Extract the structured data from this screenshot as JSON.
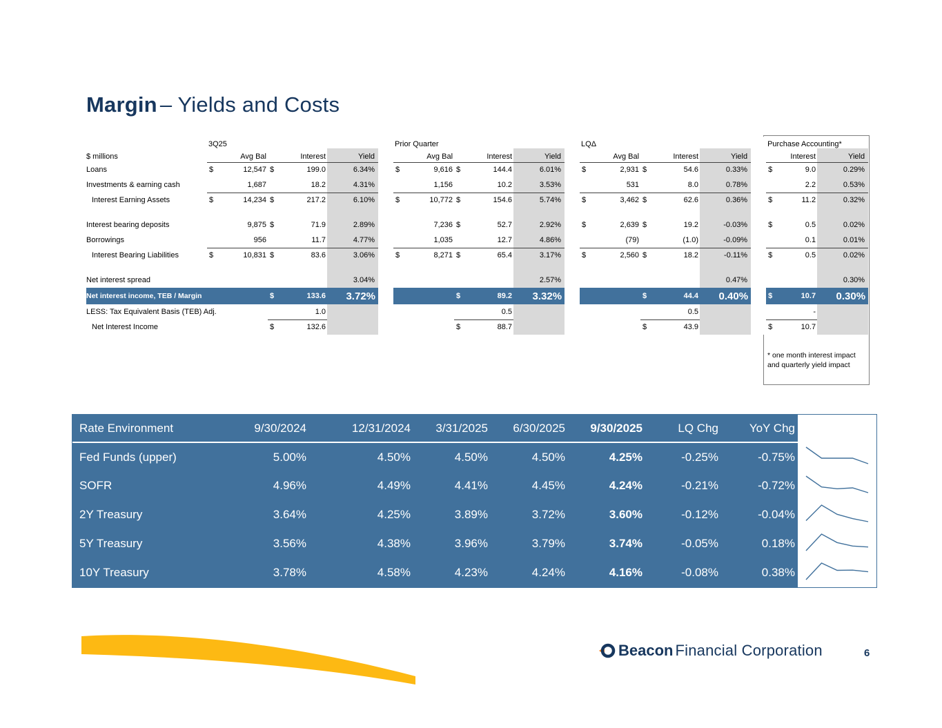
{
  "title": {
    "bold": "Margin",
    "rest": "– Yields and Costs"
  },
  "colors": {
    "navy": "#17375E",
    "steel_blue": "#41719C",
    "yield_gray": "#D9D9D9",
    "accent_yellow": "#FDB913",
    "sparkline": "#41719C"
  },
  "margin_table": {
    "unit_label": "$ millions",
    "groups": [
      {
        "name": "3Q25",
        "headers": [
          "Avg Bal",
          "Interest",
          "Yield"
        ]
      },
      {
        "name": "Prior Quarter",
        "headers": [
          "Avg Bal",
          "Interest",
          "Yield"
        ]
      },
      {
        "name": "LQΔ",
        "headers": [
          "Avg Bal",
          "Interest",
          "Yield"
        ]
      },
      {
        "name": "Purchase Accounting*",
        "headers": [
          "Interest",
          "Yield"
        ]
      }
    ],
    "rows": [
      {
        "label": "Loans",
        "cells": [
          [
            "$",
            "12,547",
            "$",
            "199.0",
            "6.34%"
          ],
          [
            "$",
            "9,616",
            "$",
            "144.4",
            "6.01%"
          ],
          [
            "$",
            "2,931",
            "$",
            "54.6",
            "0.33%"
          ],
          [
            "$",
            "9.0",
            "0.29%"
          ]
        ]
      },
      {
        "label": "Investments & earning cash",
        "cells": [
          [
            "",
            "1,687",
            "",
            "18.2",
            "4.31%"
          ],
          [
            "",
            "1,156",
            "",
            "10.2",
            "3.53%"
          ],
          [
            "",
            "531",
            "",
            "8.0",
            "0.78%"
          ],
          [
            "",
            "2.2",
            "0.53%"
          ]
        ]
      },
      {
        "label": "Interest Earning Assets",
        "indent": true,
        "border": "full",
        "cells": [
          [
            "$",
            "14,234",
            "$",
            "217.2",
            "6.10%"
          ],
          [
            "$",
            "10,772",
            "$",
            "154.6",
            "5.74%"
          ],
          [
            "$",
            "3,462",
            "$",
            "62.6",
            "0.36%"
          ],
          [
            "$",
            "11.2",
            "0.32%"
          ]
        ]
      },
      {
        "type": "spacer",
        "cells": [
          [
            "",
            "",
            "",
            "",
            ""
          ],
          [
            "",
            "",
            "",
            "",
            ""
          ],
          [
            "",
            "",
            "",
            "",
            ""
          ],
          [
            "",
            "",
            ""
          ]
        ]
      },
      {
        "label": "Interest bearing deposits",
        "cells": [
          [
            "",
            "9,875",
            "$",
            "71.9",
            "2.89%"
          ],
          [
            "",
            "7,236",
            "$",
            "52.7",
            "2.92%"
          ],
          [
            "$",
            "2,639",
            "$",
            "19.2",
            "-0.03%"
          ],
          [
            "$",
            "0.5",
            "0.02%"
          ]
        ]
      },
      {
        "label": "Borrowings",
        "cells": [
          [
            "",
            "956",
            "",
            "11.7",
            "4.77%"
          ],
          [
            "",
            "1,035",
            "",
            "12.7",
            "4.86%"
          ],
          [
            "",
            "(79)",
            "",
            "(1.0)",
            "-0.09%"
          ],
          [
            "",
            "0.1",
            "0.01%"
          ]
        ]
      },
      {
        "label": "Interest Bearing Liabilities",
        "indent": true,
        "border": "full",
        "cells": [
          [
            "$",
            "10,831",
            "$",
            "83.6",
            "3.06%"
          ],
          [
            "$",
            "8,271",
            "$",
            "65.4",
            "3.17%"
          ],
          [
            "$",
            "2,560",
            "$",
            "18.2",
            "-0.11%"
          ],
          [
            "$",
            "0.5",
            "0.02%"
          ]
        ]
      },
      {
        "type": "spacer",
        "cells": [
          [
            "",
            "",
            "",
            "",
            ""
          ],
          [
            "",
            "",
            "",
            "",
            ""
          ],
          [
            "",
            "",
            "",
            "",
            ""
          ],
          [
            "",
            "",
            ""
          ]
        ]
      },
      {
        "label": "Net interest spread",
        "cells": [
          [
            "",
            "",
            "",
            "",
            "3.04%"
          ],
          [
            "",
            "",
            "",
            "",
            "2.57%"
          ],
          [
            "",
            "",
            "",
            "",
            "0.47%"
          ],
          [
            "",
            "",
            "0.30%"
          ]
        ]
      },
      {
        "label": "Net interest income, TEB / Margin",
        "type": "highlight",
        "cells": [
          [
            "",
            "",
            "$",
            "133.6",
            "3.72%"
          ],
          [
            "",
            "",
            "$",
            "89.2",
            "3.32%"
          ],
          [
            "",
            "",
            "$",
            "44.4",
            "0.40%"
          ],
          [
            "$",
            "10.7",
            "0.30%"
          ]
        ]
      },
      {
        "label": "LESS: Tax Equivalent Basis (TEB) Adj.",
        "cells": [
          [
            "",
            "",
            "",
            "1.0",
            ""
          ],
          [
            "",
            "",
            "",
            "0.5",
            ""
          ],
          [
            "",
            "",
            "",
            "0.5",
            ""
          ],
          [
            "",
            "-",
            ""
          ]
        ]
      },
      {
        "label": "Net Interest Income",
        "indent": true,
        "border": "interest",
        "cells": [
          [
            "",
            "",
            "$",
            "132.6",
            ""
          ],
          [
            "",
            "",
            "$",
            "88.7",
            ""
          ],
          [
            "",
            "",
            "$",
            "43.9",
            ""
          ],
          [
            "$",
            "10.7",
            ""
          ]
        ]
      }
    ],
    "footnote": "* one month interest impact and quarterly yield impact"
  },
  "rate_table": {
    "header": [
      "Rate Environment",
      "9/30/2024",
      "12/31/2024",
      "3/31/2025",
      "6/30/2025",
      "9/30/2025",
      "LQ Chg",
      "YoY Chg"
    ],
    "bold_column": "9/30/2025",
    "rows": [
      {
        "label": "Fed Funds (upper)",
        "values": [
          "5.00%",
          "4.50%",
          "4.50%",
          "4.50%",
          "4.25%",
          "-0.25%",
          "-0.75%"
        ]
      },
      {
        "label": "SOFR",
        "values": [
          "4.96%",
          "4.49%",
          "4.41%",
          "4.45%",
          "4.24%",
          "-0.21%",
          "-0.72%"
        ]
      },
      {
        "label": "2Y Treasury",
        "values": [
          "3.64%",
          "4.25%",
          "3.89%",
          "3.72%",
          "3.60%",
          "-0.12%",
          "-0.04%"
        ]
      },
      {
        "label": "5Y Treasury",
        "values": [
          "3.56%",
          "4.38%",
          "3.96%",
          "3.79%",
          "3.74%",
          "-0.05%",
          "0.18%"
        ]
      },
      {
        "label": "10Y Treasury",
        "values": [
          "3.78%",
          "4.58%",
          "4.23%",
          "4.24%",
          "4.16%",
          "-0.08%",
          "0.38%"
        ]
      }
    ]
  },
  "footer": {
    "brand_bold": "Beacon",
    "brand_rest": "Financial Corporation",
    "page_number": "6"
  }
}
